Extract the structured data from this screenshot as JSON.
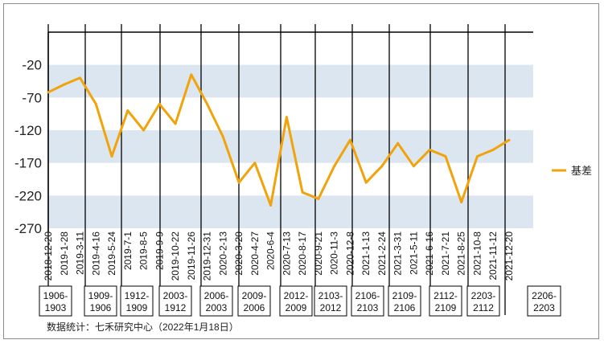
{
  "chart_data": {
    "type": "line",
    "title": "",
    "xlabel": "",
    "ylabel": "",
    "ylim": [
      -270,
      30
    ],
    "yticks": [
      -20,
      -70,
      -120,
      -170,
      -220,
      -270
    ],
    "grid": "alternating horizontal bands",
    "legend_position": "right",
    "colors": {
      "line": "#f0a30a",
      "band": "#dce6f1",
      "vline": "#000000"
    },
    "x_tick_labels": [
      "2018-12-20",
      "2019-1-28",
      "2019-3-11",
      "2019-4-16",
      "2019-5-24",
      "2019-7-1",
      "2019-8-5",
      "2019-9-9",
      "2019-10-22",
      "2019-11-26",
      "2019-12-31",
      "2020-2-13",
      "2020-3-20",
      "2020-4-27",
      "2020-6-4",
      "2020-7-13",
      "2020-8-17",
      "2020-9-21",
      "2020-11-3",
      "2020-12-8",
      "2021-1-13",
      "2021-2-24",
      "2021-3-31",
      "2021-5-11",
      "2021-6-16",
      "2021-7-21",
      "2021-8-25",
      "2021-10-8",
      "2021-11-12",
      "2021-12-20"
    ],
    "contract_boxes": [
      "1906-1903",
      "1909-1906",
      "1912-1909",
      "2003-1912",
      "2006-2003",
      "2009-2006",
      "2012-2009",
      "2103-2012",
      "2106-2103",
      "2109-2106",
      "2112-2109",
      "2203-2112",
      "2206-2203"
    ],
    "series": [
      {
        "name": "基差",
        "x": [
          "2018-12-20",
          "2019-1-28",
          "2019-3-11",
          "2019-4-16",
          "2019-5-24",
          "2019-7-1",
          "2019-8-5",
          "2019-9-9",
          "2019-10-22",
          "2019-11-26",
          "2019-12-31",
          "2020-2-13",
          "2020-3-20",
          "2020-4-27",
          "2020-6-4",
          "2020-7-13",
          "2020-8-17",
          "2020-9-21",
          "2020-11-3",
          "2020-12-8",
          "2021-1-13",
          "2021-2-24",
          "2021-3-31",
          "2021-5-11",
          "2021-6-16",
          "2021-7-21",
          "2021-8-25",
          "2021-10-8",
          "2021-11-12",
          "2021-12-20"
        ],
        "values": [
          -62,
          -50,
          -40,
          -80,
          -160,
          -90,
          -120,
          -80,
          -110,
          -35,
          -80,
          -130,
          -200,
          -170,
          -235,
          -100,
          -215,
          -225,
          -175,
          -135,
          -200,
          -175,
          -140,
          -175,
          -150,
          -160,
          -230,
          -160,
          -150,
          -135
        ]
      }
    ]
  },
  "legend": {
    "label": "基差"
  },
  "source_note": "数据统计：七禾研究中心（2022年1月18日）"
}
